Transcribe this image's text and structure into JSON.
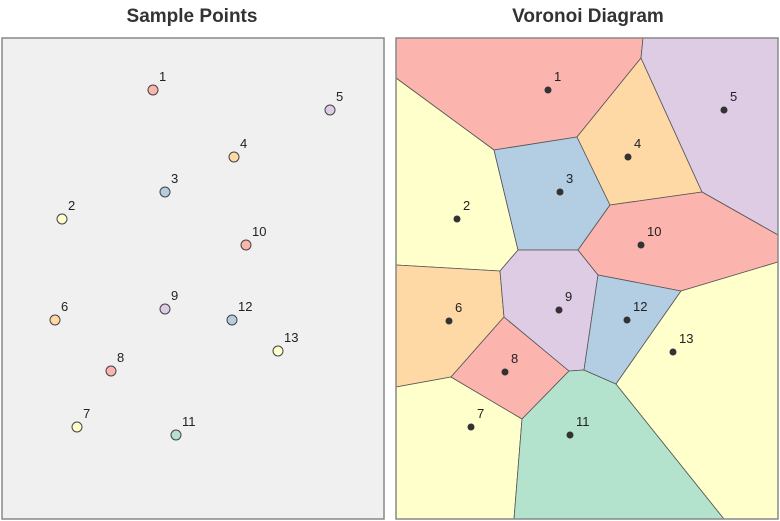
{
  "titles": {
    "left": "Sample Points",
    "right": "Voronoi Diagram"
  },
  "colors": {
    "panel_background": "#f0f0f0",
    "panel_border": "#888888",
    "cell_edge": "#555555",
    "site_dot": "#333333",
    "palette": {
      "red": "#fbb4ae",
      "blue": "#b3cde3",
      "green": "#ccebc5",
      "purple": "#decbe4",
      "orange": "#fed9a6",
      "yellow": "#ffffcc",
      "teal": "#b3e2cd"
    }
  },
  "sites": [
    {
      "id": "1",
      "color": "red"
    },
    {
      "id": "2",
      "color": "yellow"
    },
    {
      "id": "3",
      "color": "blue"
    },
    {
      "id": "4",
      "color": "orange"
    },
    {
      "id": "5",
      "color": "purple"
    },
    {
      "id": "6",
      "color": "orange"
    },
    {
      "id": "7",
      "color": "yellow"
    },
    {
      "id": "8",
      "color": "red"
    },
    {
      "id": "9",
      "color": "purple"
    },
    {
      "id": "10",
      "color": "red"
    },
    {
      "id": "11",
      "color": "teal"
    },
    {
      "id": "12",
      "color": "blue"
    },
    {
      "id": "13",
      "color": "yellow"
    }
  ]
}
